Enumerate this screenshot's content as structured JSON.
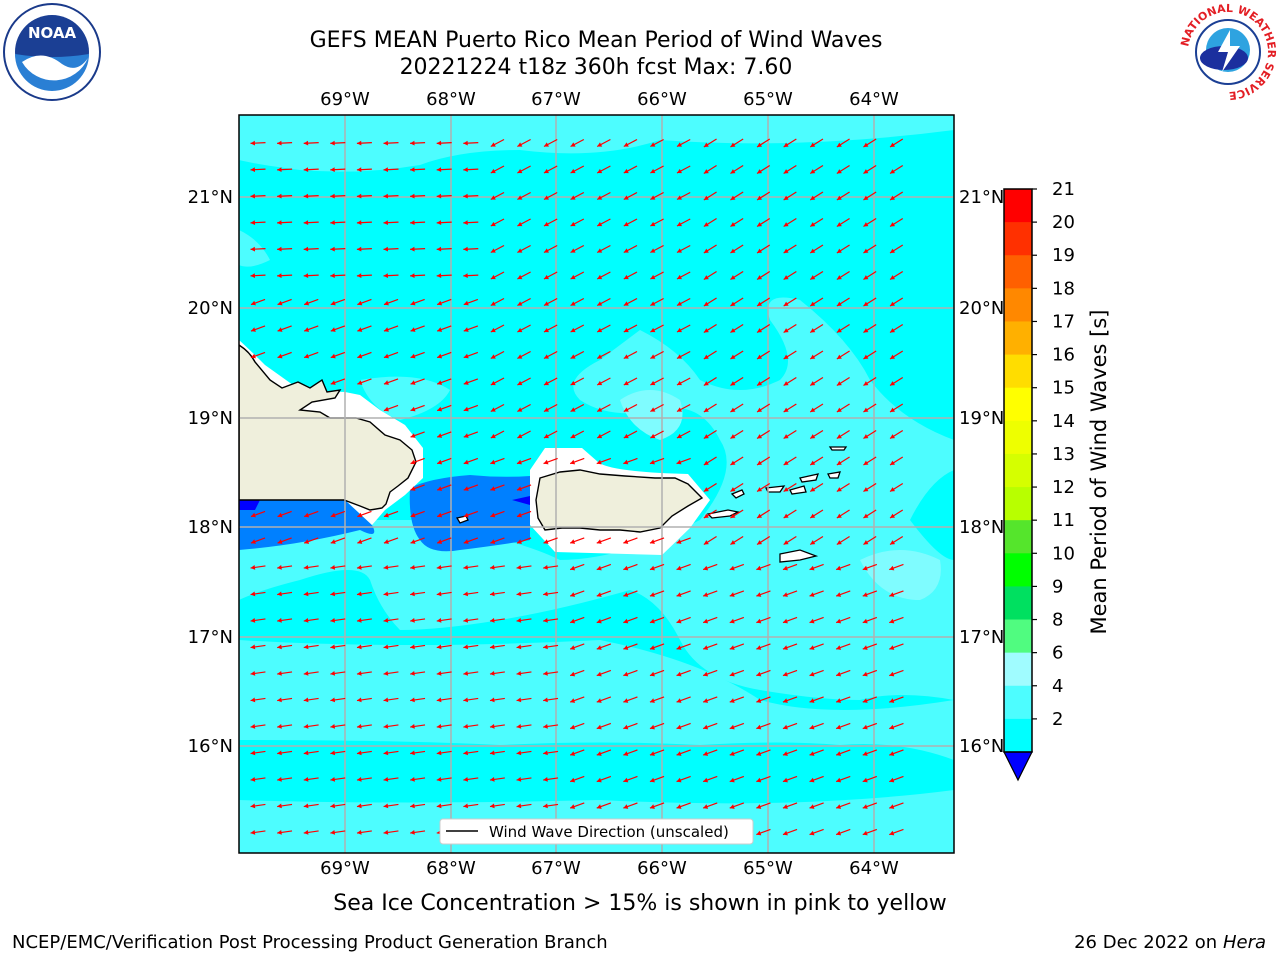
{
  "header": {
    "title_line1": "GEFS MEAN Puerto Rico Mean Period of Wind Waves",
    "title_line2": "20221224 t18z 360h fcst   Max: 7.60"
  },
  "logos": {
    "noaa": "NOAA",
    "nws": "NATIONAL WEATHER SERVICE"
  },
  "map": {
    "lon_labels": [
      "69°W",
      "68°W",
      "67°W",
      "66°W",
      "65°W",
      "64°W"
    ],
    "lat_labels": [
      "21°N",
      "20°N",
      "19°N",
      "18°N",
      "17°N",
      "16°N"
    ],
    "legend_label": "Wind Wave Direction (unscaled)",
    "colors": {
      "ocean_light": "#00ffff",
      "ocean_mid": "#4dfdff",
      "ocean_pale": "#7ffcff",
      "low": "#0080ff",
      "lowest": "#0000ff",
      "land": "#efefdc",
      "arrow": "#ff0000"
    }
  },
  "colorbar": {
    "label": "Mean Period of Wind Waves [s]",
    "ticks": [
      "21",
      "20",
      "19",
      "18",
      "17",
      "16",
      "15",
      "14",
      "13",
      "12",
      "11",
      "10",
      "9",
      "8",
      "6",
      "4",
      "2"
    ],
    "colors": [
      "#ff0000",
      "#ff3000",
      "#ff6000",
      "#ff8800",
      "#ffb000",
      "#ffdd00",
      "#ffff00",
      "#eeff00",
      "#d5ff00",
      "#b8ff00",
      "#55e52c",
      "#00ff00",
      "#00e060",
      "#50fc80",
      "#a0fcff",
      "#4dfdff",
      "#00ffff",
      "#0080ff"
    ]
  },
  "footer": {
    "note": "Sea Ice Concentration > 15% is shown in pink to yellow",
    "left": "NCEP/EMC/Verification Post Processing Product Generation Branch",
    "right_date": "26 Dec 2022 on",
    "right_host": "Hera"
  }
}
